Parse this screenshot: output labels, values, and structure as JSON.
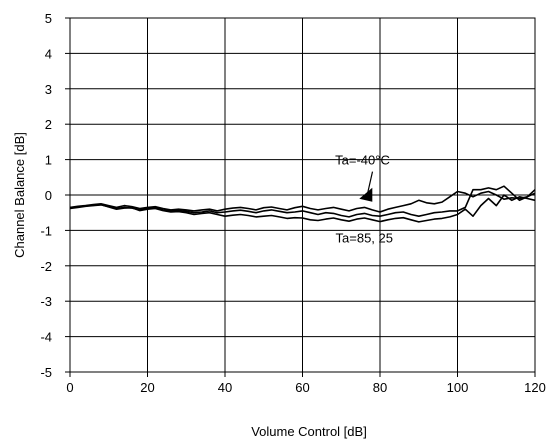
{
  "chart_data": {
    "type": "line",
    "title": "",
    "xlabel": "Volume Control [dB]",
    "ylabel": "Channel Balance [dB]",
    "xlim": [
      0,
      120
    ],
    "ylim": [
      -5,
      5
    ],
    "xticks": [
      0,
      20,
      40,
      60,
      80,
      100,
      120
    ],
    "yticks": [
      5,
      4,
      3,
      2,
      1,
      0,
      -1,
      -2,
      -3,
      -4,
      -5
    ],
    "grid": true,
    "legend": "none",
    "series": [
      {
        "x": [
          0,
          2,
          4,
          6,
          8,
          10,
          12,
          14,
          16,
          18,
          20,
          22,
          24,
          26,
          28,
          30,
          32,
          34,
          36,
          38,
          40,
          42,
          44,
          46,
          48,
          50,
          52,
          54,
          56,
          58,
          60,
          62,
          64,
          66,
          68,
          70,
          72,
          74,
          76,
          78,
          80,
          82,
          84,
          86,
          88,
          90,
          92,
          94,
          96,
          98,
          100,
          102,
          104,
          106,
          108,
          110,
          112,
          114,
          116,
          118,
          120
        ],
        "values": [
          -0.35,
          -0.32,
          -0.3,
          -0.27,
          -0.25,
          -0.3,
          -0.35,
          -0.3,
          -0.33,
          -0.38,
          -0.35,
          -0.33,
          -0.38,
          -0.42,
          -0.4,
          -0.42,
          -0.45,
          -0.42,
          -0.4,
          -0.45,
          -0.4,
          -0.37,
          -0.35,
          -0.38,
          -0.42,
          -0.36,
          -0.34,
          -0.38,
          -0.42,
          -0.36,
          -0.32,
          -0.38,
          -0.42,
          -0.38,
          -0.35,
          -0.4,
          -0.45,
          -0.38,
          -0.35,
          -0.42,
          -0.48,
          -0.4,
          -0.35,
          -0.3,
          -0.25,
          -0.15,
          -0.22,
          -0.25,
          -0.2,
          -0.05,
          0.1,
          0.05,
          -0.05,
          0.05,
          0.1,
          0.0,
          -0.12,
          -0.08,
          -0.1,
          -0.05,
          0.15
        ]
      },
      {
        "x": [
          0,
          2,
          4,
          6,
          8,
          10,
          12,
          14,
          16,
          18,
          20,
          22,
          24,
          26,
          28,
          30,
          32,
          34,
          36,
          38,
          40,
          42,
          44,
          46,
          48,
          50,
          52,
          54,
          56,
          58,
          60,
          62,
          64,
          66,
          68,
          70,
          72,
          74,
          76,
          78,
          80,
          82,
          84,
          86,
          88,
          90,
          92,
          94,
          96,
          98,
          100,
          102,
          104,
          106,
          108,
          110,
          112,
          114,
          116,
          118,
          120
        ],
        "values": [
          -0.38,
          -0.35,
          -0.32,
          -0.3,
          -0.28,
          -0.33,
          -0.38,
          -0.35,
          -0.37,
          -0.42,
          -0.38,
          -0.36,
          -0.42,
          -0.45,
          -0.44,
          -0.46,
          -0.5,
          -0.48,
          -0.45,
          -0.5,
          -0.48,
          -0.45,
          -0.43,
          -0.46,
          -0.5,
          -0.45,
          -0.42,
          -0.46,
          -0.5,
          -0.48,
          -0.45,
          -0.5,
          -0.55,
          -0.5,
          -0.52,
          -0.58,
          -0.62,
          -0.55,
          -0.52,
          -0.58,
          -0.6,
          -0.55,
          -0.5,
          -0.48,
          -0.55,
          -0.6,
          -0.55,
          -0.5,
          -0.48,
          -0.45,
          -0.45,
          -0.35,
          0.15,
          0.15,
          0.2,
          0.15,
          0.25,
          0.05,
          -0.15,
          -0.05,
          0.05
        ]
      },
      {
        "x": [
          0,
          2,
          4,
          6,
          8,
          10,
          12,
          14,
          16,
          18,
          20,
          22,
          24,
          26,
          28,
          30,
          32,
          34,
          36,
          38,
          40,
          42,
          44,
          46,
          48,
          50,
          52,
          54,
          56,
          58,
          60,
          62,
          64,
          66,
          68,
          70,
          72,
          74,
          76,
          78,
          80,
          82,
          84,
          86,
          88,
          90,
          92,
          94,
          96,
          98,
          100,
          102,
          104,
          106,
          108,
          110,
          112,
          114,
          116,
          118,
          120
        ],
        "values": [
          -0.36,
          -0.34,
          -0.31,
          -0.29,
          -0.27,
          -0.34,
          -0.4,
          -0.37,
          -0.36,
          -0.44,
          -0.4,
          -0.38,
          -0.44,
          -0.48,
          -0.47,
          -0.5,
          -0.55,
          -0.52,
          -0.5,
          -0.55,
          -0.6,
          -0.57,
          -0.55,
          -0.58,
          -0.62,
          -0.6,
          -0.58,
          -0.62,
          -0.66,
          -0.64,
          -0.65,
          -0.7,
          -0.72,
          -0.68,
          -0.65,
          -0.7,
          -0.74,
          -0.68,
          -0.65,
          -0.7,
          -0.75,
          -0.7,
          -0.66,
          -0.64,
          -0.7,
          -0.76,
          -0.72,
          -0.68,
          -0.66,
          -0.62,
          -0.55,
          -0.4,
          -0.6,
          -0.3,
          -0.1,
          -0.3,
          0.0,
          -0.15,
          -0.05,
          -0.1,
          -0.15
        ]
      }
    ],
    "annotations": [
      {
        "text": "Ta=-40°C",
        "x": 76,
        "y": 1.0
      },
      {
        "text": "Ta=85, 25",
        "x": 78,
        "y": -1.2
      }
    ]
  }
}
